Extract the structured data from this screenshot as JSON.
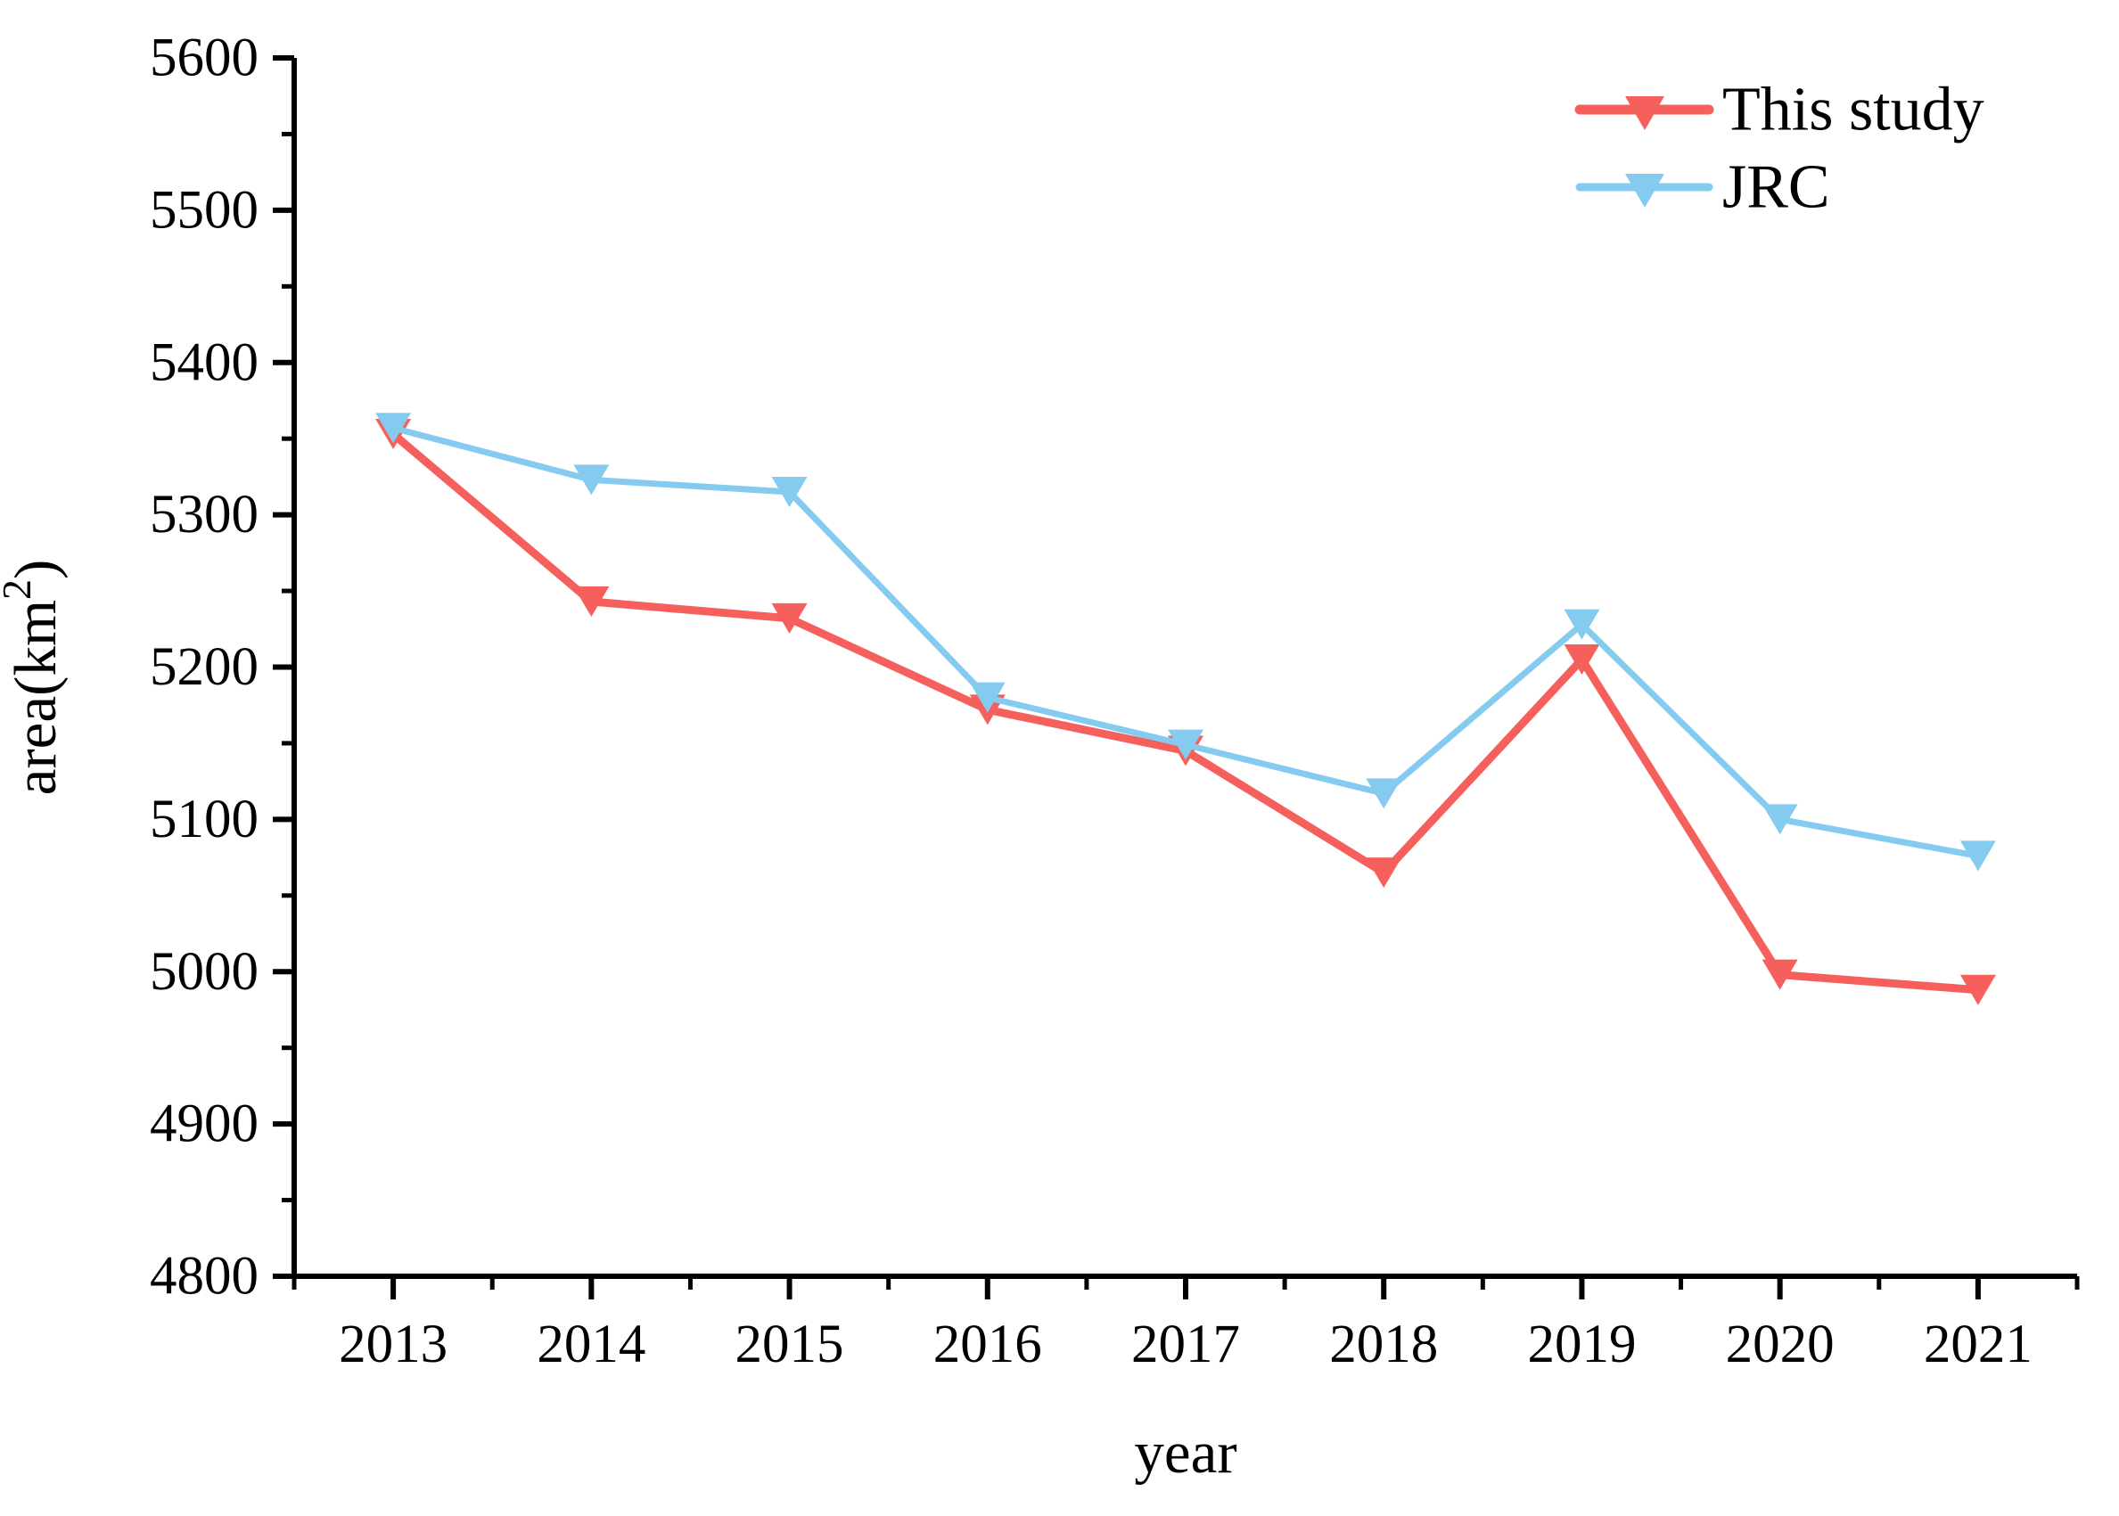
{
  "figure": {
    "background": "#ffffff",
    "axis_color": "#000000"
  },
  "chart_data": {
    "type": "line",
    "title": "",
    "xlabel": "year",
    "ylabel": "area(km²)",
    "x": [
      2013,
      2014,
      2015,
      2016,
      2017,
      2018,
      2019,
      2020,
      2021
    ],
    "x_tick_labels": [
      "2013",
      "2014",
      "2015",
      "2016",
      "2017",
      "2018",
      "2019",
      "2020",
      "2021"
    ],
    "y_tick_labels": [
      "4800",
      "4900",
      "5000",
      "5100",
      "5200",
      "5300",
      "5400",
      "5500",
      "5600"
    ],
    "series": [
      {
        "name": "This study",
        "color": "#F5605D",
        "marker": "triangle-down",
        "line_width": 9,
        "values": [
          5353,
          5243,
          5232,
          5172,
          5145,
          5065,
          5205,
          4998,
          4988
        ]
      },
      {
        "name": "JRC",
        "color": "#85CBF0",
        "marker": "triangle-down",
        "line_width": 7,
        "values": [
          5357,
          5323,
          5315,
          5180,
          5149,
          5117,
          5228,
          5100,
          5076
        ]
      }
    ],
    "xlim": [
      2012.5,
      2021.5
    ],
    "ylim": [
      4800,
      5600
    ],
    "ytick_interval": 100,
    "yminor_interval": 50,
    "xtick_interval": 1,
    "xminor_interval": 0.5,
    "grid": false,
    "legend_position": "top-right",
    "legend_entries": [
      "This study",
      "JRC"
    ]
  }
}
